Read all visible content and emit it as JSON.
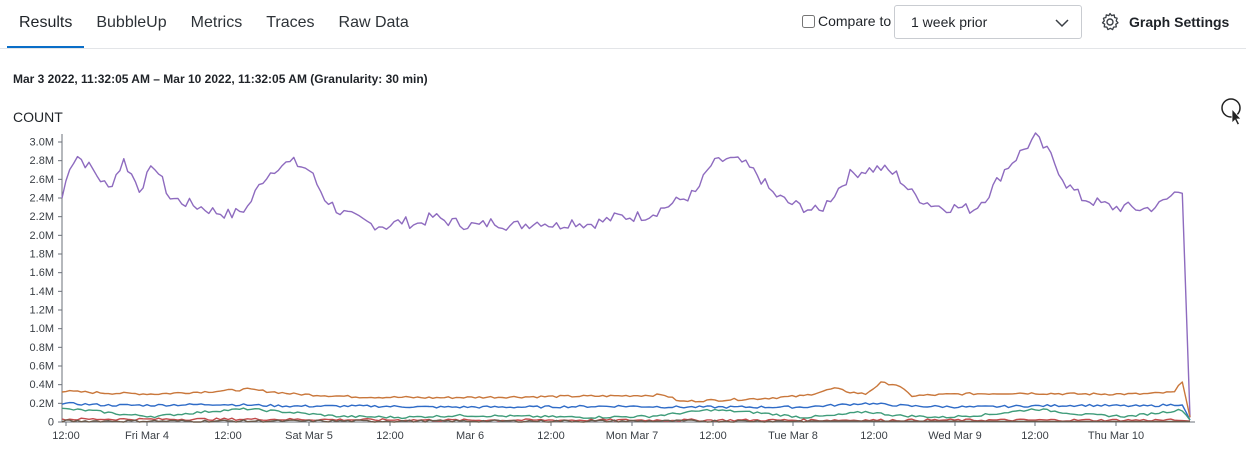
{
  "tabs": [
    {
      "label": "Results",
      "active": true
    },
    {
      "label": "BubbleUp",
      "active": false
    },
    {
      "label": "Metrics",
      "active": false
    },
    {
      "label": "Traces",
      "active": false
    },
    {
      "label": "Raw Data",
      "active": false
    }
  ],
  "compare": {
    "label": "Compare to",
    "checked": false,
    "selected": "1 week prior"
  },
  "graph_settings_label": "Graph Settings",
  "time_range": "Mar 3 2022, 11:32:05 AM – Mar 10 2022, 11:32:05 AM (Granularity: 30 min)",
  "icons": {
    "settings": "gear-icon",
    "dropdown": "chevron-down-icon",
    "cursor": "mouse-cursor-icon"
  },
  "chart_data": {
    "type": "line",
    "title": "COUNT",
    "ylim": [
      0,
      3.1
    ],
    "y_unit": "M",
    "y_ticks": [
      "0",
      "0.2M",
      "0.4M",
      "0.6M",
      "0.8M",
      "1.0M",
      "1.2M",
      "1.4M",
      "1.6M",
      "1.8M",
      "2.0M",
      "2.2M",
      "2.4M",
      "2.6M",
      "2.8M",
      "3.0M"
    ],
    "x_ticks": [
      "12:00",
      "Fri Mar 4",
      "12:00",
      "Sat Mar 5",
      "12:00",
      "Mar 6",
      "12:00",
      "Mon Mar 7",
      "12:00",
      "Tue Mar 8",
      "12:00",
      "Wed Mar 9",
      "12:00",
      "Thu Mar 10"
    ],
    "x_range_hours": [
      0,
      168
    ],
    "grid": false,
    "series": [
      {
        "color": "#8e6bbf",
        "values": [
          [
            0,
            2.4
          ],
          [
            1,
            2.75
          ],
          [
            2,
            2.85
          ],
          [
            4,
            2.7
          ],
          [
            6,
            2.5
          ],
          [
            8,
            2.8
          ],
          [
            10,
            2.5
          ],
          [
            12,
            2.75
          ],
          [
            14,
            2.4
          ],
          [
            16,
            2.35
          ],
          [
            18,
            2.3
          ],
          [
            20,
            2.25
          ],
          [
            22,
            2.22
          ],
          [
            24,
            2.3
          ],
          [
            26,
            2.6
          ],
          [
            28,
            2.75
          ],
          [
            30,
            2.78
          ],
          [
            32,
            2.7
          ],
          [
            34,
            2.4
          ],
          [
            36,
            2.25
          ],
          [
            38,
            2.18
          ],
          [
            40,
            2.12
          ],
          [
            42,
            2.1
          ],
          [
            44,
            2.15
          ],
          [
            46,
            2.12
          ],
          [
            48,
            2.2
          ],
          [
            50,
            2.15
          ],
          [
            52,
            2.12
          ],
          [
            54,
            2.1
          ],
          [
            56,
            2.15
          ],
          [
            58,
            2.1
          ],
          [
            60,
            2.12
          ],
          [
            62,
            2.15
          ],
          [
            64,
            2.1
          ],
          [
            66,
            2.15
          ],
          [
            68,
            2.12
          ],
          [
            70,
            2.15
          ],
          [
            72,
            2.2
          ],
          [
            74,
            2.2
          ],
          [
            76,
            2.22
          ],
          [
            78,
            2.3
          ],
          [
            80,
            2.38
          ],
          [
            82,
            2.45
          ],
          [
            84,
            2.75
          ],
          [
            86,
            2.82
          ],
          [
            88,
            2.78
          ],
          [
            90,
            2.65
          ],
          [
            92,
            2.45
          ],
          [
            94,
            2.35
          ],
          [
            96,
            2.3
          ],
          [
            98,
            2.25
          ],
          [
            100,
            2.45
          ],
          [
            102,
            2.65
          ],
          [
            104,
            2.7
          ],
          [
            106,
            2.72
          ],
          [
            108,
            2.65
          ],
          [
            110,
            2.45
          ],
          [
            112,
            2.35
          ],
          [
            114,
            2.3
          ],
          [
            116,
            2.3
          ],
          [
            118,
            2.28
          ],
          [
            120,
            2.45
          ],
          [
            122,
            2.7
          ],
          [
            124,
            2.88
          ],
          [
            126,
            3.05
          ],
          [
            128,
            2.85
          ],
          [
            130,
            2.55
          ],
          [
            132,
            2.4
          ],
          [
            134,
            2.35
          ],
          [
            136,
            2.3
          ],
          [
            138,
            2.3
          ],
          [
            140,
            2.28
          ],
          [
            142,
            2.32
          ],
          [
            144,
            2.45
          ],
          [
            145,
            2.5
          ],
          [
            146,
            0.05
          ]
        ]
      },
      {
        "color": "#c9773b",
        "values": [
          [
            0,
            0.33
          ],
          [
            6,
            0.31
          ],
          [
            12,
            0.3
          ],
          [
            20,
            0.33
          ],
          [
            24,
            0.35
          ],
          [
            30,
            0.3
          ],
          [
            38,
            0.27
          ],
          [
            48,
            0.26
          ],
          [
            60,
            0.27
          ],
          [
            72,
            0.28
          ],
          [
            78,
            0.29
          ],
          [
            80,
            0.22
          ],
          [
            90,
            0.25
          ],
          [
            96,
            0.28
          ],
          [
            100,
            0.36
          ],
          [
            102,
            0.32
          ],
          [
            104,
            0.3
          ],
          [
            106,
            0.42
          ],
          [
            108,
            0.4
          ],
          [
            110,
            0.28
          ],
          [
            116,
            0.3
          ],
          [
            124,
            0.31
          ],
          [
            132,
            0.3
          ],
          [
            140,
            0.3
          ],
          [
            144,
            0.32
          ],
          [
            145,
            0.44
          ],
          [
            146,
            0.05
          ]
        ]
      },
      {
        "color": "#2e6bc7",
        "values": [
          [
            0,
            0.2
          ],
          [
            6,
            0.18
          ],
          [
            12,
            0.18
          ],
          [
            20,
            0.19
          ],
          [
            30,
            0.17
          ],
          [
            40,
            0.17
          ],
          [
            48,
            0.16
          ],
          [
            60,
            0.16
          ],
          [
            72,
            0.17
          ],
          [
            80,
            0.16
          ],
          [
            88,
            0.16
          ],
          [
            96,
            0.16
          ],
          [
            100,
            0.18
          ],
          [
            104,
            0.2
          ],
          [
            110,
            0.17
          ],
          [
            118,
            0.16
          ],
          [
            124,
            0.17
          ],
          [
            132,
            0.18
          ],
          [
            140,
            0.17
          ],
          [
            145,
            0.19
          ],
          [
            146,
            0.02
          ]
        ]
      },
      {
        "color": "#3f9c7a",
        "values": [
          [
            0,
            0.14
          ],
          [
            4,
            0.12
          ],
          [
            8,
            0.08
          ],
          [
            12,
            0.06
          ],
          [
            20,
            0.12
          ],
          [
            24,
            0.14
          ],
          [
            30,
            0.1
          ],
          [
            36,
            0.06
          ],
          [
            44,
            0.05
          ],
          [
            52,
            0.07
          ],
          [
            60,
            0.06
          ],
          [
            68,
            0.05
          ],
          [
            76,
            0.06
          ],
          [
            84,
            0.13
          ],
          [
            90,
            0.1
          ],
          [
            96,
            0.05
          ],
          [
            100,
            0.07
          ],
          [
            104,
            0.11
          ],
          [
            108,
            0.07
          ],
          [
            114,
            0.05
          ],
          [
            120,
            0.08
          ],
          [
            126,
            0.14
          ],
          [
            132,
            0.08
          ],
          [
            138,
            0.06
          ],
          [
            145,
            0.13
          ],
          [
            146,
            0.02
          ]
        ]
      },
      {
        "color": "#c24a4a",
        "values": [
          [
            0,
            0.03
          ],
          [
            24,
            0.03
          ],
          [
            48,
            0.02
          ],
          [
            72,
            0.02
          ],
          [
            96,
            0.02
          ],
          [
            120,
            0.02
          ],
          [
            144,
            0.02
          ],
          [
            146,
            0.01
          ]
        ]
      },
      {
        "color": "#6a5a4a",
        "values": [
          [
            0,
            0.01
          ],
          [
            48,
            0.01
          ],
          [
            96,
            0.01
          ],
          [
            146,
            0.005
          ]
        ]
      }
    ]
  }
}
